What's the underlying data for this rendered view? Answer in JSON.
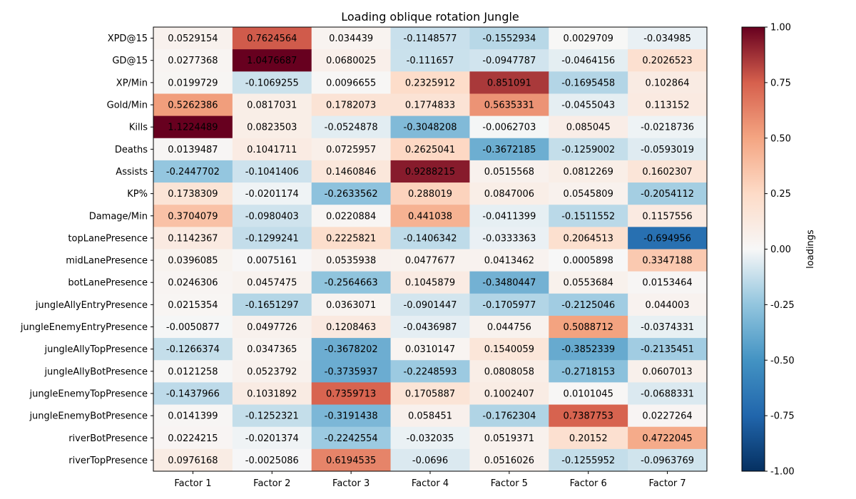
{
  "chart_data": {
    "type": "heatmap",
    "title": "Loading oblique rotation Jungle",
    "columns": [
      "Factor 1",
      "Factor 2",
      "Factor 3",
      "Factor 4",
      "Factor 5",
      "Factor 6",
      "Factor 7"
    ],
    "rows": [
      "XPD@15",
      "GD@15",
      "XP/Min",
      "Gold/Min",
      "Kills",
      "Deaths",
      "Assists",
      "KP%",
      "Damage/Min",
      "topLanePresence",
      "midLanePresence",
      "botLanePresence",
      "jungleAllyEntryPresence",
      "jungleEnemyEntryPresence",
      "jungleAllyTopPresence",
      "jungleAllyBotPresence",
      "jungleEnemyTopPresence",
      "jungleEnemyBotPresence",
      "riverBotPresence",
      "riverTopPresence"
    ],
    "values": [
      [
        "0.0529154",
        "0.7624564",
        "0.034439",
        "-0.1148577",
        "-0.1552934",
        "0.0029709",
        "-0.034985"
      ],
      [
        "0.0277368",
        "1.0476687",
        "0.0680025",
        "-0.111657",
        "-0.0947787",
        "-0.0464156",
        "0.2026523"
      ],
      [
        "0.0199729",
        "-0.1069255",
        "0.0096655",
        "0.2325912",
        "0.851091",
        "-0.1695458",
        "0.102864"
      ],
      [
        "0.5262386",
        "0.0817031",
        "0.1782073",
        "0.1774833",
        "0.5635331",
        "-0.0455043",
        "0.113152"
      ],
      [
        "1.1224489",
        "0.0823503",
        "-0.0524878",
        "-0.3048208",
        "-0.0062703",
        "0.085045",
        "-0.0218736"
      ],
      [
        "0.0139487",
        "0.1041711",
        "0.0725957",
        "0.2625041",
        "-0.3672185",
        "-0.1259002",
        "-0.0593019"
      ],
      [
        "-0.2447702",
        "-0.1041406",
        "0.1460846",
        "0.9288215",
        "0.0515568",
        "0.0812269",
        "0.1602307"
      ],
      [
        "0.1738309",
        "-0.0201174",
        "-0.2633562",
        "0.288019",
        "0.0847006",
        "0.0545809",
        "-0.2054112"
      ],
      [
        "0.3704079",
        "-0.0980403",
        "0.0220884",
        "0.441038",
        "-0.0411399",
        "-0.1511552",
        "0.1157556"
      ],
      [
        "0.1142367",
        "-0.1299241",
        "0.2225821",
        "-0.1406342",
        "-0.0333363",
        "0.2064513",
        "-0.694956"
      ],
      [
        "0.0396085",
        "0.0075161",
        "0.0535938",
        "0.0477677",
        "0.0413462",
        "0.0005898",
        "0.3347188"
      ],
      [
        "0.0246306",
        "0.0457475",
        "-0.2564663",
        "0.1045879",
        "-0.3480447",
        "0.0553684",
        "0.0153464"
      ],
      [
        "0.0215354",
        "-0.1651297",
        "0.0363071",
        "-0.0901447",
        "-0.1705977",
        "-0.2125046",
        "0.044003"
      ],
      [
        "-0.0050877",
        "0.0497726",
        "0.1208463",
        "-0.0436987",
        "0.044756",
        "0.5088712",
        "-0.0374331"
      ],
      [
        "-0.1266374",
        "0.0347365",
        "-0.3678202",
        "0.0310147",
        "0.1540059",
        "-0.3852339",
        "-0.2135451"
      ],
      [
        "0.0121258",
        "0.0523792",
        "-0.3735937",
        "-0.2248593",
        "0.0808058",
        "-0.2718153",
        "0.0607013"
      ],
      [
        "-0.1437966",
        "0.1031892",
        "0.7359713",
        "0.1705887",
        "0.1002407",
        "0.0101045",
        "-0.0688331"
      ],
      [
        "0.0141399",
        "-0.1252321",
        "-0.3191438",
        "0.058451",
        "-0.1762304",
        "0.7387753",
        "0.0227264"
      ],
      [
        "0.0224215",
        "-0.0201374",
        "-0.2242554",
        "-0.032035",
        "0.0519371",
        "0.20152",
        "0.4722045"
      ],
      [
        "0.0976168",
        "-0.0025086",
        "0.6194535",
        "-0.0696",
        "0.0516026",
        "-0.1255952",
        "-0.0963769"
      ]
    ],
    "colorbar": {
      "label": "loadings",
      "vmin": -1.0,
      "vmax": 1.0,
      "ticks": [
        "1.00",
        "0.75",
        "0.50",
        "0.25",
        "0.00",
        "-0.25",
        "-0.50",
        "-0.75",
        "-1.00"
      ],
      "colormap": "RdBu_r"
    }
  }
}
